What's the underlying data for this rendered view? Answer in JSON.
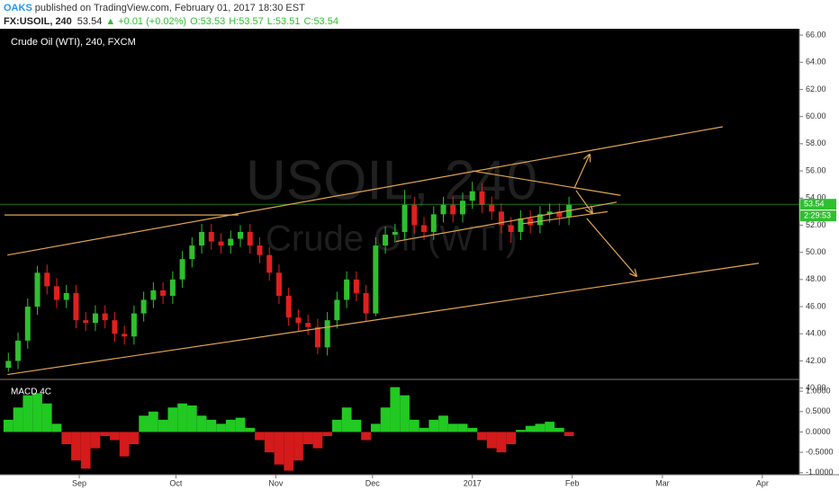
{
  "header": {
    "author": "OAKS",
    "published": "published on TradingView.com, February 01, 2017 18:30 EST",
    "symbol": "FX:USOIL, 240",
    "last": "53.54",
    "arrow": "▲",
    "change": "+0.01 (+0.02%)",
    "open": "O:53.53",
    "high": "H:53.57",
    "low": "L:53.51",
    "close": "C:53.54"
  },
  "chart_data": [
    {
      "type": "candlestick",
      "title": "Crude Oil (WTI), 240, FXCM",
      "watermark": [
        "USOIL, 240",
        "Crude Oil (WTI)"
      ],
      "x": [
        -22,
        -19,
        -16,
        -13,
        -10,
        -7,
        -4,
        -1,
        2,
        5,
        8,
        11,
        14,
        17,
        20,
        23,
        26,
        29,
        32,
        35,
        38,
        41,
        44,
        47,
        50,
        53,
        56,
        59,
        62,
        65,
        68,
        71,
        74,
        77,
        80,
        83,
        86,
        89,
        92,
        95,
        98,
        101,
        104,
        107,
        110,
        113,
        116,
        119,
        122,
        125,
        128,
        131,
        134,
        137,
        140,
        143,
        146,
        149,
        152
      ],
      "open": [
        41.5,
        42.0,
        43.5,
        46.0,
        48.5,
        47.5,
        46.5,
        47.0,
        45.0,
        44.8,
        45.5,
        45.0,
        44.0,
        43.8,
        45.5,
        46.5,
        47.2,
        46.8,
        48.0,
        49.5,
        50.5,
        51.5,
        50.8,
        50.5,
        51.0,
        51.5,
        50.5,
        49.8,
        48.5,
        46.8,
        45.2,
        44.8,
        44.5,
        43.0,
        45.0,
        46.5,
        48.0,
        47.0,
        45.5,
        50.5,
        51.3,
        51.5,
        53.5,
        52.0,
        51.5,
        52.8,
        53.5,
        52.8,
        53.8,
        54.5,
        53.5,
        53.0,
        52.0,
        51.5,
        52.5,
        52.0,
        52.8,
        53.0,
        52.6
      ],
      "high": [
        42.6,
        44.1,
        46.6,
        49.0,
        49.1,
        48.1,
        47.6,
        47.6,
        45.6,
        46.1,
        46.1,
        45.6,
        44.6,
        46.1,
        47.1,
        47.8,
        47.8,
        48.6,
        50.1,
        51.1,
        52.1,
        52.1,
        51.4,
        51.6,
        52.0,
        52.1,
        51.1,
        50.4,
        49.1,
        47.4,
        45.8,
        45.4,
        45.1,
        45.6,
        47.1,
        48.6,
        48.6,
        47.6,
        51.1,
        51.9,
        52.1,
        54.6,
        54.1,
        52.6,
        53.4,
        54.1,
        54.1,
        54.4,
        55.2,
        55.1,
        54.1,
        53.6,
        52.6,
        53.1,
        53.1,
        53.4,
        53.6,
        53.6,
        54.1
      ],
      "low": [
        41.2,
        41.4,
        42.9,
        45.4,
        46.9,
        45.9,
        45.9,
        44.4,
        44.2,
        44.2,
        44.4,
        43.4,
        43.2,
        43.2,
        44.9,
        45.9,
        46.2,
        46.2,
        47.4,
        48.9,
        49.9,
        50.2,
        49.9,
        49.9,
        50.4,
        49.9,
        49.2,
        47.9,
        46.2,
        44.6,
        44.2,
        43.9,
        42.5,
        42.4,
        44.4,
        45.9,
        46.4,
        44.9,
        45.3,
        49.9,
        50.7,
        50.9,
        51.4,
        50.9,
        50.9,
        52.2,
        52.2,
        52.2,
        53.2,
        52.9,
        52.4,
        51.4,
        50.7,
        50.9,
        51.4,
        51.4,
        52.2,
        52.0,
        52.0
      ],
      "close": [
        42.0,
        43.5,
        46.0,
        48.5,
        47.5,
        46.5,
        47.0,
        45.0,
        44.8,
        45.5,
        45.0,
        44.0,
        43.8,
        45.5,
        46.5,
        47.2,
        46.8,
        48.0,
        49.5,
        50.5,
        51.5,
        50.8,
        50.5,
        51.0,
        51.5,
        50.5,
        49.8,
        48.5,
        46.8,
        45.2,
        44.8,
        44.5,
        43.0,
        45.0,
        46.5,
        48.0,
        47.0,
        45.5,
        50.5,
        51.3,
        51.5,
        53.5,
        52.0,
        51.5,
        52.8,
        53.5,
        52.8,
        53.8,
        54.5,
        53.5,
        53.0,
        52.0,
        51.5,
        52.5,
        52.0,
        52.8,
        53.0,
        52.6,
        53.5
      ],
      "up_color": "#2fbf2f",
      "down_color": "#e0201e",
      "line_color": "#e0a552",
      "xlim": [
        -24.6,
        223.5
      ],
      "xticks": [
        {
          "value": 0,
          "label": "Sep"
        },
        {
          "value": 30,
          "label": "Oct"
        },
        {
          "value": 61,
          "label": "Nov"
        },
        {
          "value": 91,
          "label": "Dec"
        },
        {
          "value": 122,
          "label": "2017"
        },
        {
          "value": 153,
          "label": "Feb"
        },
        {
          "value": 181,
          "label": "Mar"
        },
        {
          "value": 212,
          "label": "Apr"
        }
      ],
      "ylim": [
        39.5,
        66.5
      ],
      "yticks": [
        {
          "value": 40,
          "label": "40.00"
        },
        {
          "value": 42,
          "label": "42.00"
        },
        {
          "value": 44,
          "label": "44.00"
        },
        {
          "value": 46,
          "label": "46.00"
        },
        {
          "value": 48,
          "label": "48.00"
        },
        {
          "value": 50,
          "label": "50.00"
        },
        {
          "value": 52,
          "label": "52.00"
        },
        {
          "value": 54,
          "label": "54.00"
        },
        {
          "value": 56,
          "label": "56.00"
        },
        {
          "value": 58,
          "label": "58.00"
        },
        {
          "value": 60,
          "label": "60.00"
        },
        {
          "value": 62,
          "label": "62.00"
        },
        {
          "value": 64,
          "label": "64.00"
        },
        {
          "value": 66,
          "label": "66.00"
        }
      ],
      "last_price": 53.54,
      "last_price_color": "#2fbf2f",
      "countdown": "2:29:53",
      "trend_lines": [
        {
          "x": [
            -22.3,
            199.7
          ],
          "y": [
            49.8,
            59.25
          ]
        },
        {
          "x": [
            -22.3,
            210.9
          ],
          "y": [
            41.0,
            49.2
          ]
        },
        {
          "x": [
            -23.2,
            49.4
          ],
          "y": [
            52.75,
            52.75
          ]
        },
        {
          "x": [
            122,
            168
          ],
          "y": [
            56.0,
            54.2
          ]
        },
        {
          "x": [
            98.3,
            166.8
          ],
          "y": [
            50.8,
            53.7
          ]
        },
        {
          "x": [
            137.4,
            164
          ],
          "y": [
            52.1,
            53.0
          ]
        }
      ],
      "arrows": [
        {
          "x": [
            153.6,
            158.4
          ],
          "y": [
            54.7,
            57.2
          ]
        },
        {
          "x": [
            154.2,
            159.2
          ],
          "y": [
            54.55,
            52.9
          ]
        },
        {
          "x": [
            157.5,
            172.9
          ],
          "y": [
            52.5,
            48.25
          ]
        }
      ]
    },
    {
      "type": "histogram",
      "title": "MACD 4C",
      "x": [
        -22,
        -19,
        -16,
        -13,
        -10,
        -7,
        -4,
        -1,
        2,
        5,
        8,
        11,
        14,
        17,
        20,
        23,
        26,
        29,
        32,
        35,
        38,
        41,
        44,
        47,
        50,
        53,
        56,
        59,
        62,
        65,
        68,
        71,
        74,
        77,
        80,
        83,
        86,
        89,
        92,
        95,
        98,
        101,
        104,
        107,
        110,
        113,
        116,
        119,
        122,
        125,
        128,
        131,
        134,
        137,
        140,
        143,
        146,
        149,
        152
      ],
      "values": [
        0.3,
        0.6,
        0.9,
        0.95,
        0.7,
        0.2,
        -0.3,
        -0.7,
        -0.9,
        -0.4,
        -0.1,
        -0.2,
        -0.6,
        -0.3,
        0.4,
        0.5,
        0.3,
        0.6,
        0.7,
        0.65,
        0.4,
        0.3,
        0.2,
        0.3,
        0.35,
        0.1,
        -0.2,
        -0.5,
        -0.8,
        -0.95,
        -0.7,
        -0.3,
        -0.4,
        -0.1,
        0.3,
        0.6,
        0.3,
        -0.2,
        0.2,
        0.6,
        1.1,
        0.9,
        0.3,
        0.1,
        0.3,
        0.4,
        0.2,
        0.2,
        0.1,
        -0.2,
        -0.4,
        -0.5,
        -0.3,
        0.05,
        0.15,
        0.2,
        0.25,
        0.1,
        -0.1
      ],
      "up_color": "#22c922",
      "down_color": "#d41a1a",
      "xlim": [
        -24.6,
        223.5
      ],
      "ylim": [
        -1.05,
        1.29
      ],
      "yticks": [
        {
          "value": 1,
          "label": "1.0000"
        },
        {
          "value": 0.5,
          "label": "0.5000"
        },
        {
          "value": 0,
          "label": "0.0000"
        },
        {
          "value": -0.5,
          "label": "-0.5000"
        },
        {
          "value": -1,
          "label": "-1.0000"
        }
      ]
    }
  ]
}
